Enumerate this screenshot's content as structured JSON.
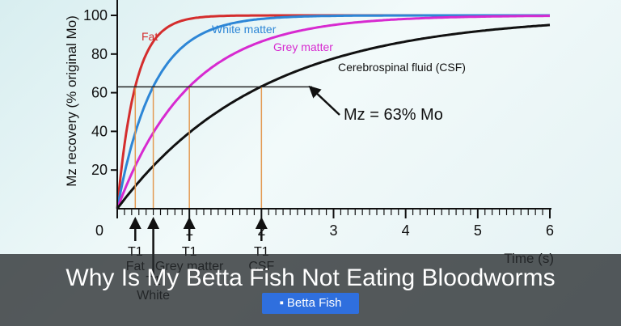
{
  "chart_data": {
    "type": "line",
    "title": "",
    "xlabel": "Time (s)",
    "ylabel": "Mz recovery (% original Mo)",
    "xlim": [
      0,
      6
    ],
    "ylim": [
      0,
      100
    ],
    "x_ticks": [
      "0",
      "1",
      "2",
      "3",
      "4",
      "5",
      "6"
    ],
    "y_ticks": [
      "20",
      "40",
      "60",
      "80",
      "100"
    ],
    "reference_level": 63,
    "reference_label": "Mz = 63% Mo",
    "series": [
      {
        "name": "Fat",
        "color": "#d42d2d",
        "t1": 0.25,
        "t1_label_top": "T1",
        "t1_label_bottom": "Fat",
        "marker_color": "#e39a52"
      },
      {
        "name": "White matter",
        "color": "#2d86d6",
        "t1": 0.5,
        "t1_label_top": "T1",
        "t1_label_bottom": "White",
        "marker_color": "#e39a52"
      },
      {
        "name": "Grey matter",
        "color": "#d72ad0",
        "t1": 1.0,
        "t1_label_top": "T1",
        "t1_label_bottom": "Grey matter",
        "marker_color": "#e39a52"
      },
      {
        "name": "Cerebrospinal fluid (CSF)",
        "color": "#111111",
        "t1": 2.0,
        "t1_label_top": "T1",
        "t1_label_bottom": "CSF",
        "marker_color": "#e39a52"
      }
    ]
  },
  "headline": "Why Is My Betta Fish Not Eating Bloodworms",
  "badge": {
    "icon": "folder-icon",
    "label": "Betta Fish"
  }
}
